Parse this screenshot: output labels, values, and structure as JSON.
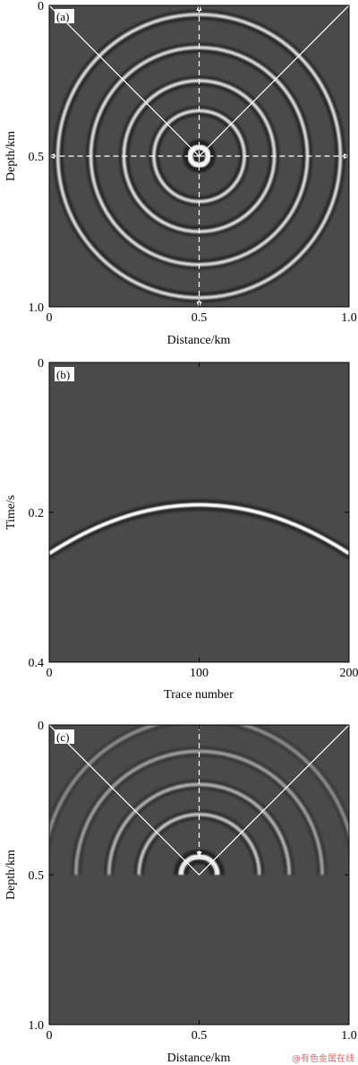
{
  "watermark": "@有色金属在线",
  "colors": {
    "field_bg": "#4a4a4a",
    "bright": "#ffffff",
    "dark": "#1c1c1c",
    "guide": "#ffffff"
  },
  "chart_data": [
    {
      "type": "heatmap",
      "panel_label": "(a)",
      "xlabel": "Distance/km",
      "ylabel": "Depth/km",
      "xlim": [
        0,
        1.0
      ],
      "ylim": [
        1.0,
        0
      ],
      "xticks": [
        0,
        0.5,
        1.0
      ],
      "xtick_labels": [
        "0",
        "0.5",
        "1.0"
      ],
      "yticks": [
        0,
        0.5,
        1.0
      ],
      "ytick_labels": [
        "0",
        "0.5",
        "1.0"
      ],
      "source": {
        "x": 0.5,
        "y": 0.5
      },
      "wavefront_radii": [
        0.03,
        0.15,
        0.25,
        0.36,
        0.47
      ],
      "guide_lines": [
        {
          "style": "solid",
          "points": [
            [
              0,
              0
            ],
            [
              0.5,
              0.5
            ],
            [
              1.0,
              0
            ]
          ]
        },
        {
          "style": "dashed-arrow",
          "points": [
            [
              0.5,
              0.5
            ],
            [
              0.5,
              0
            ]
          ]
        },
        {
          "style": "dashed-arrow",
          "points": [
            [
              0.5,
              0.5
            ],
            [
              0.5,
              1.0
            ]
          ]
        },
        {
          "style": "dashed-arrow",
          "points": [
            [
              0.5,
              0.5
            ],
            [
              0,
              0.5
            ]
          ]
        },
        {
          "style": "dashed-arrow",
          "points": [
            [
              0.5,
              0.5
            ],
            [
              1.0,
              0.5
            ]
          ]
        }
      ]
    },
    {
      "type": "heatmap",
      "panel_label": "(b)",
      "xlabel": "Trace number",
      "ylabel": "Time/s",
      "xlim": [
        0,
        200
      ],
      "ylim": [
        0.4,
        0
      ],
      "xticks": [
        0,
        100,
        200
      ],
      "xtick_labels": [
        "0",
        "100",
        "200"
      ],
      "yticks": [
        0,
        0.2,
        0.4
      ],
      "ytick_labels": [
        "0",
        "0.2",
        "0.4"
      ],
      "event": {
        "apex_trace": 100,
        "apex_time": 0.19,
        "edge_time": 0.255
      }
    },
    {
      "type": "heatmap",
      "panel_label": "(c)",
      "xlabel": "Distance/km",
      "ylabel": "Depth/km",
      "xlim": [
        0,
        1.0
      ],
      "ylim": [
        1.0,
        0
      ],
      "xticks": [
        0,
        0.5,
        1.0
      ],
      "xtick_labels": [
        "0",
        "0.5",
        "1.0"
      ],
      "yticks": [
        0,
        0.5,
        1.0
      ],
      "ytick_labels": [
        "0",
        "0.5",
        "1.0"
      ],
      "source": {
        "x": 0.5,
        "y": 0.5
      },
      "wavefront_radii": [
        0.06,
        0.2,
        0.3,
        0.41,
        0.52
      ],
      "guide_lines": [
        {
          "style": "solid",
          "points": [
            [
              0,
              0
            ],
            [
              0.5,
              0.5
            ],
            [
              1.0,
              0
            ]
          ]
        },
        {
          "style": "dashed-arrow",
          "points": [
            [
              0.5,
              0
            ],
            [
              0.5,
              0.44
            ]
          ]
        }
      ]
    }
  ]
}
